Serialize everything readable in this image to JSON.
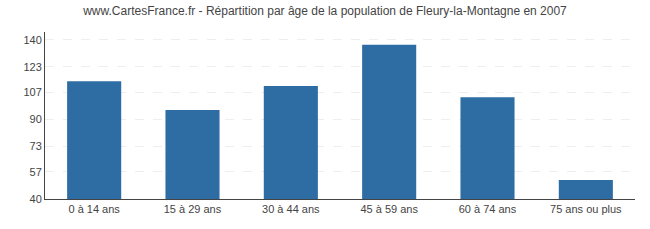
{
  "chart_data": {
    "type": "bar",
    "title": "www.CartesFrance.fr - Répartition par âge de la population de Fleury-la-Montagne en 2007",
    "categories": [
      "0 à 14 ans",
      "15 à 29 ans",
      "30 à 44 ans",
      "45 à 59 ans",
      "60 à 74 ans",
      "75 ans ou plus"
    ],
    "values": [
      114,
      96,
      111,
      137,
      104,
      52
    ],
    "color": "#2e6da4",
    "ylim": [
      40,
      145
    ],
    "yticks": [
      40,
      57,
      73,
      90,
      107,
      123,
      140
    ],
    "grid": true
  }
}
